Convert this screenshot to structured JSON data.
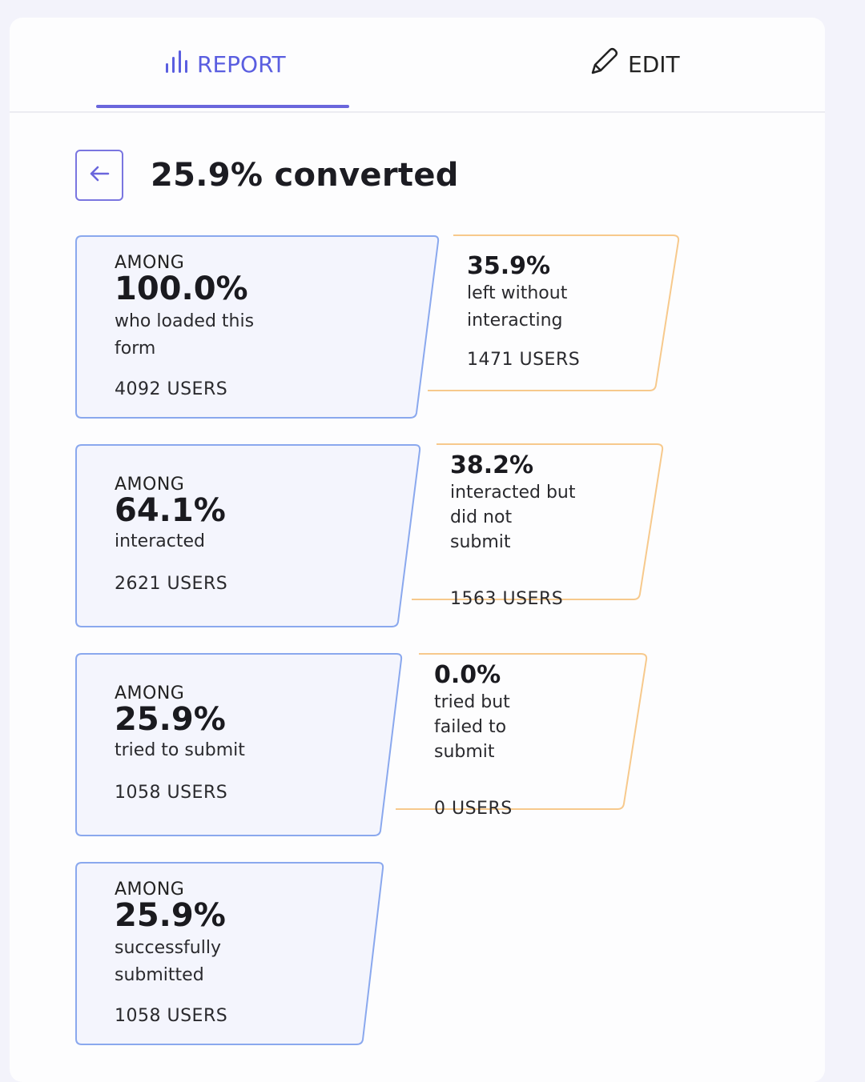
{
  "tabs": {
    "report": {
      "label": "REPORT",
      "icon": "bar-chart-icon"
    },
    "edit": {
      "label": "EDIT",
      "icon": "pencil-icon"
    }
  },
  "header": {
    "title": "25.9% converted",
    "back_icon": "arrow-left-icon"
  },
  "colors": {
    "accent": "#5a5ee0",
    "stage_border": "#8aa8ee",
    "stage_fill": "#f4f5fd",
    "drop_border": "#f7c98c"
  },
  "stages": [
    {
      "among": "AMONG",
      "pct": "100.0%",
      "desc": "who loaded this",
      "desc2": "form",
      "users": "4092 USERS"
    },
    {
      "among": "AMONG",
      "pct": "64.1%",
      "desc": "interacted",
      "desc2": "",
      "users": "2621 USERS"
    },
    {
      "among": "AMONG",
      "pct": "25.9%",
      "desc": "tried to submit",
      "desc2": "",
      "users": "1058 USERS"
    },
    {
      "among": "AMONG",
      "pct": "25.9%",
      "desc": "successfully",
      "desc2": "submitted",
      "users": "1058 USERS"
    }
  ],
  "dropoffs": [
    {
      "pct": "35.9%",
      "l1": "left without",
      "l2": "interacting",
      "l3": "",
      "users": "1471 USERS"
    },
    {
      "pct": "38.2%",
      "l1": "interacted but",
      "l2": "did not",
      "l3": "submit",
      "users": "1563 USERS"
    },
    {
      "pct": "0.0%",
      "l1": "tried but",
      "l2": "failed to",
      "l3": "submit",
      "users": "0 USERS"
    }
  ]
}
